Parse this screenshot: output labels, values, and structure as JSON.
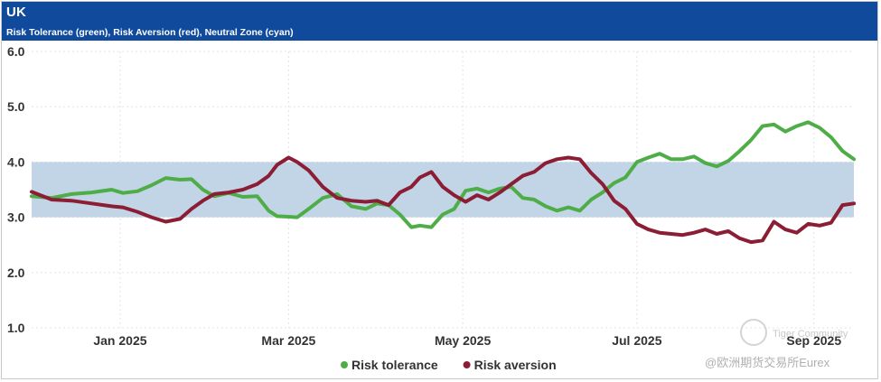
{
  "header": {
    "title": "UK",
    "subtitle": "Risk Tolerance (green), Risk Aversion (red), Neutral Zone (cyan)"
  },
  "chart_data": {
    "type": "line",
    "ylim": [
      1.0,
      6.0
    ],
    "yticks": [
      "1.0",
      "2.0",
      "3.0",
      "4.0",
      "5.0",
      "6.0"
    ],
    "x_range": [
      "2024-12-01",
      "2025-09-15"
    ],
    "xticks": [
      {
        "label": "Jan 2025",
        "date": "2025-01-01"
      },
      {
        "label": "Mar 2025",
        "date": "2025-03-01"
      },
      {
        "label": "May 2025",
        "date": "2025-05-01"
      },
      {
        "label": "Jul 2025",
        "date": "2025-07-01"
      },
      {
        "label": "Sep 2025",
        "date": "2025-09-01"
      }
    ],
    "neutral_zone": {
      "low": 3.0,
      "high": 4.0,
      "color": "#c2d5e6"
    },
    "series": [
      {
        "name": "Risk tolerance",
        "color": "#4fad48",
        "points": [
          [
            "2024-12-01",
            3.38
          ],
          [
            "2024-12-08",
            3.35
          ],
          [
            "2024-12-15",
            3.42
          ],
          [
            "2024-12-22",
            3.45
          ],
          [
            "2024-12-29",
            3.5
          ],
          [
            "2025-01-02",
            3.44
          ],
          [
            "2025-01-07",
            3.47
          ],
          [
            "2025-01-12",
            3.58
          ],
          [
            "2025-01-17",
            3.71
          ],
          [
            "2025-01-22",
            3.68
          ],
          [
            "2025-01-26",
            3.69
          ],
          [
            "2025-01-30",
            3.5
          ],
          [
            "2025-02-03",
            3.38
          ],
          [
            "2025-02-08",
            3.44
          ],
          [
            "2025-02-13",
            3.37
          ],
          [
            "2025-02-18",
            3.38
          ],
          [
            "2025-02-22",
            3.12
          ],
          [
            "2025-02-25",
            3.02
          ],
          [
            "2025-03-01",
            3.01
          ],
          [
            "2025-03-04",
            3.0
          ],
          [
            "2025-03-08",
            3.15
          ],
          [
            "2025-03-13",
            3.35
          ],
          [
            "2025-03-18",
            3.42
          ],
          [
            "2025-03-23",
            3.2
          ],
          [
            "2025-03-28",
            3.15
          ],
          [
            "2025-04-01",
            3.25
          ],
          [
            "2025-04-05",
            3.22
          ],
          [
            "2025-04-09",
            3.05
          ],
          [
            "2025-04-13",
            2.82
          ],
          [
            "2025-04-16",
            2.85
          ],
          [
            "2025-04-20",
            2.82
          ],
          [
            "2025-04-24",
            3.05
          ],
          [
            "2025-04-28",
            3.15
          ],
          [
            "2025-05-02",
            3.48
          ],
          [
            "2025-05-06",
            3.52
          ],
          [
            "2025-05-10",
            3.45
          ],
          [
            "2025-05-14",
            3.52
          ],
          [
            "2025-05-18",
            3.55
          ],
          [
            "2025-05-22",
            3.35
          ],
          [
            "2025-05-26",
            3.32
          ],
          [
            "2025-05-30",
            3.2
          ],
          [
            "2025-06-03",
            3.12
          ],
          [
            "2025-06-07",
            3.18
          ],
          [
            "2025-06-11",
            3.12
          ],
          [
            "2025-06-15",
            3.32
          ],
          [
            "2025-06-19",
            3.45
          ],
          [
            "2025-06-23",
            3.62
          ],
          [
            "2025-06-27",
            3.72
          ],
          [
            "2025-07-01",
            4.0
          ],
          [
            "2025-07-05",
            4.08
          ],
          [
            "2025-07-09",
            4.15
          ],
          [
            "2025-07-13",
            4.05
          ],
          [
            "2025-07-17",
            4.05
          ],
          [
            "2025-07-21",
            4.1
          ],
          [
            "2025-07-25",
            3.98
          ],
          [
            "2025-07-29",
            3.92
          ],
          [
            "2025-08-02",
            4.02
          ],
          [
            "2025-08-06",
            4.2
          ],
          [
            "2025-08-10",
            4.4
          ],
          [
            "2025-08-14",
            4.65
          ],
          [
            "2025-08-18",
            4.68
          ],
          [
            "2025-08-22",
            4.55
          ],
          [
            "2025-08-26",
            4.65
          ],
          [
            "2025-08-30",
            4.72
          ],
          [
            "2025-09-03",
            4.62
          ],
          [
            "2025-09-07",
            4.45
          ],
          [
            "2025-09-11",
            4.2
          ],
          [
            "2025-09-15",
            4.05
          ]
        ]
      },
      {
        "name": "Risk aversion",
        "color": "#8b1d34",
        "points": [
          [
            "2024-12-01",
            3.46
          ],
          [
            "2024-12-08",
            3.32
          ],
          [
            "2024-12-15",
            3.3
          ],
          [
            "2024-12-22",
            3.25
          ],
          [
            "2024-12-29",
            3.2
          ],
          [
            "2025-01-02",
            3.18
          ],
          [
            "2025-01-07",
            3.1
          ],
          [
            "2025-01-12",
            3.0
          ],
          [
            "2025-01-17",
            2.92
          ],
          [
            "2025-01-22",
            2.97
          ],
          [
            "2025-01-26",
            3.15
          ],
          [
            "2025-01-30",
            3.3
          ],
          [
            "2025-02-03",
            3.42
          ],
          [
            "2025-02-08",
            3.45
          ],
          [
            "2025-02-13",
            3.5
          ],
          [
            "2025-02-18",
            3.6
          ],
          [
            "2025-02-22",
            3.75
          ],
          [
            "2025-02-25",
            3.95
          ],
          [
            "2025-03-01",
            4.08
          ],
          [
            "2025-03-04",
            4.0
          ],
          [
            "2025-03-08",
            3.85
          ],
          [
            "2025-03-13",
            3.55
          ],
          [
            "2025-03-18",
            3.35
          ],
          [
            "2025-03-23",
            3.3
          ],
          [
            "2025-03-28",
            3.28
          ],
          [
            "2025-04-01",
            3.3
          ],
          [
            "2025-04-05",
            3.22
          ],
          [
            "2025-04-09",
            3.45
          ],
          [
            "2025-04-13",
            3.55
          ],
          [
            "2025-04-16",
            3.72
          ],
          [
            "2025-04-20",
            3.82
          ],
          [
            "2025-04-24",
            3.55
          ],
          [
            "2025-04-28",
            3.4
          ],
          [
            "2025-05-02",
            3.28
          ],
          [
            "2025-05-06",
            3.4
          ],
          [
            "2025-05-10",
            3.32
          ],
          [
            "2025-05-14",
            3.45
          ],
          [
            "2025-05-18",
            3.6
          ],
          [
            "2025-05-22",
            3.75
          ],
          [
            "2025-05-26",
            3.82
          ],
          [
            "2025-05-30",
            3.98
          ],
          [
            "2025-06-03",
            4.05
          ],
          [
            "2025-06-07",
            4.08
          ],
          [
            "2025-06-11",
            4.05
          ],
          [
            "2025-06-15",
            3.8
          ],
          [
            "2025-06-19",
            3.6
          ],
          [
            "2025-06-23",
            3.3
          ],
          [
            "2025-06-27",
            3.15
          ],
          [
            "2025-07-01",
            2.88
          ],
          [
            "2025-07-05",
            2.78
          ],
          [
            "2025-07-09",
            2.72
          ],
          [
            "2025-07-13",
            2.7
          ],
          [
            "2025-07-17",
            2.68
          ],
          [
            "2025-07-21",
            2.72
          ],
          [
            "2025-07-25",
            2.78
          ],
          [
            "2025-07-29",
            2.7
          ],
          [
            "2025-08-02",
            2.75
          ],
          [
            "2025-08-06",
            2.62
          ],
          [
            "2025-08-10",
            2.55
          ],
          [
            "2025-08-14",
            2.58
          ],
          [
            "2025-08-18",
            2.92
          ],
          [
            "2025-08-22",
            2.78
          ],
          [
            "2025-08-26",
            2.72
          ],
          [
            "2025-08-30",
            2.88
          ],
          [
            "2025-09-03",
            2.85
          ],
          [
            "2025-09-07",
            2.9
          ],
          [
            "2025-09-11",
            3.22
          ],
          [
            "2025-09-15",
            3.25
          ]
        ]
      }
    ],
    "legend": {
      "position": "bottom-center"
    }
  },
  "watermark": {
    "line1": "Tiger Community",
    "line2": "@欧洲期货交易所Eurex"
  }
}
